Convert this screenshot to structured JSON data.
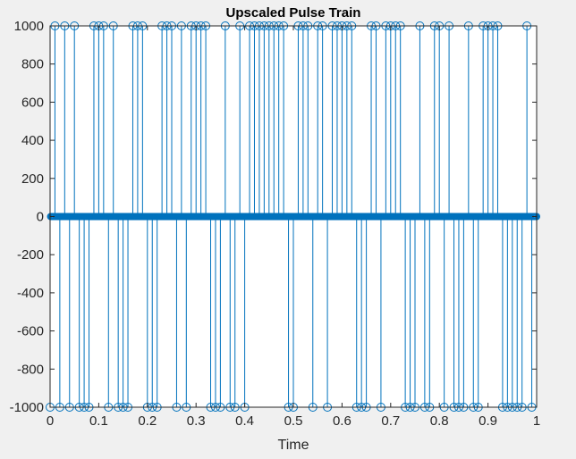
{
  "chart_data": {
    "type": "stem",
    "title": "Upscaled Pulse Train",
    "xlabel": "Time",
    "ylabel": "",
    "xlim": [
      0,
      1
    ],
    "ylim": [
      -1000,
      1000
    ],
    "x_ticks": [
      0,
      0.1,
      0.2,
      0.3,
      0.4,
      0.5,
      0.6,
      0.7,
      0.8,
      0.9,
      1
    ],
    "x_tick_labels": [
      "0",
      "0.1",
      "0.2",
      "0.3",
      "0.4",
      "0.5",
      "0.6",
      "0.7",
      "0.8",
      "0.9",
      "1"
    ],
    "y_ticks": [
      -1000,
      -800,
      -600,
      -400,
      -200,
      0,
      200,
      400,
      600,
      800,
      1000
    ],
    "y_tick_labels": [
      "-1000",
      "-800",
      "-600",
      "-400",
      "-200",
      "0",
      "200",
      "400",
      "600",
      "800",
      "1000"
    ],
    "grid": false,
    "color": "#0072bd",
    "background": "#ffffff",
    "sample_spacing": 0.001,
    "series": [
      {
        "x_positive": [
          0.01,
          0.03,
          0.05,
          0.09,
          0.1,
          0.11,
          0.13,
          0.17,
          0.18,
          0.19,
          0.23,
          0.24,
          0.25,
          0.27,
          0.29,
          0.3,
          0.31,
          0.32,
          0.36,
          0.39,
          0.41,
          0.42,
          0.43,
          0.44,
          0.45,
          0.46,
          0.47,
          0.48,
          0.51,
          0.52,
          0.53,
          0.55,
          0.56,
          0.58,
          0.59,
          0.6,
          0.61,
          0.62,
          0.66,
          0.67,
          0.69,
          0.7,
          0.71,
          0.72,
          0.76,
          0.79,
          0.8,
          0.82,
          0.86,
          0.89,
          0.9,
          0.91,
          0.92,
          0.98
        ],
        "x_negative": [
          0.0,
          0.02,
          0.04,
          0.06,
          0.07,
          0.08,
          0.12,
          0.14,
          0.15,
          0.16,
          0.2,
          0.21,
          0.22,
          0.26,
          0.28,
          0.33,
          0.34,
          0.35,
          0.37,
          0.38,
          0.4,
          0.49,
          0.5,
          0.54,
          0.57,
          0.63,
          0.64,
          0.65,
          0.68,
          0.73,
          0.74,
          0.75,
          0.77,
          0.78,
          0.81,
          0.83,
          0.84,
          0.85,
          0.87,
          0.88,
          0.93,
          0.94,
          0.95,
          0.96,
          0.97,
          0.99
        ]
      }
    ]
  }
}
